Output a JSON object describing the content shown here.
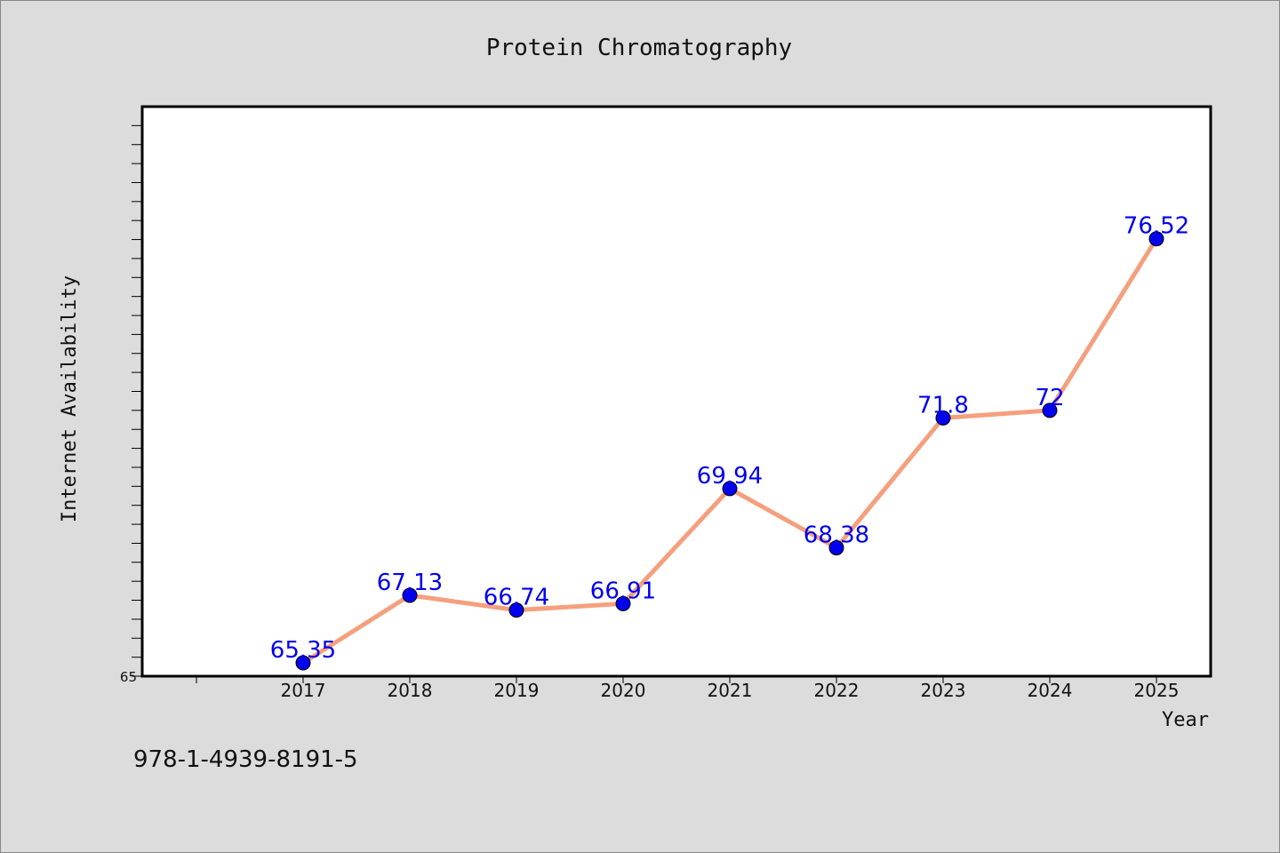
{
  "chart_data": {
    "type": "line",
    "title": "Protein Chromatography",
    "xlabel": "Year",
    "ylabel": "Internet Availability",
    "categories": [
      "2017",
      "2018",
      "2019",
      "2020",
      "2021",
      "2022",
      "2023",
      "2024",
      "2025"
    ],
    "series": [
      {
        "values": [
          65.35,
          67.13,
          66.74,
          66.91,
          69.94,
          68.38,
          71.8,
          72,
          76.52
        ],
        "data_labels": [
          "65.35",
          "67.13",
          "66.74",
          "66.91",
          "69.94",
          "68.38",
          "71.8",
          "72",
          "76.52"
        ]
      }
    ],
    "ylim": [
      65,
      80
    ],
    "ytick_labels": [
      "65"
    ],
    "grid": false,
    "line_color": "#f4a07e",
    "marker_color": "#0000ee",
    "label_color": "#0000ee"
  },
  "footer": {
    "isbn": "978-1-4939-8191-5"
  }
}
